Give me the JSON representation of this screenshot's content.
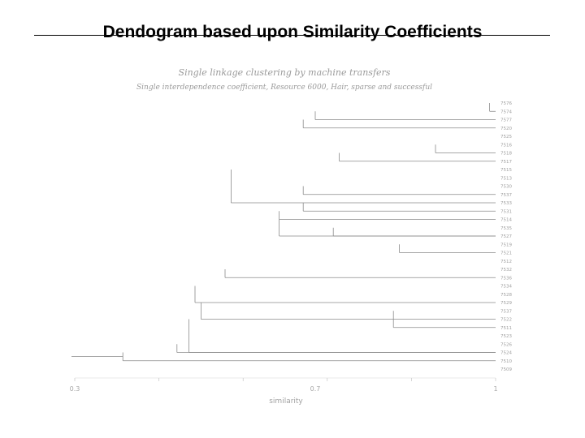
{
  "slide": {
    "title": "Dendogram based upon Similarity Coefficients"
  },
  "chart_data": {
    "type": "dendrogram",
    "title": "Single linkage clustering by machine transfers",
    "subtitle": "Single interdependence coefficient, Resource 6000, Hair, sparse and successful",
    "xlabel": "similarity",
    "x_tick_labels": [
      {
        "value": 0.3,
        "label": "0.3"
      },
      {
        "value": 0.7,
        "label": "0.7"
      },
      {
        "value": 1.0,
        "label": "1"
      }
    ],
    "xlim": [
      0.3,
      1.0
    ],
    "grid": false,
    "leaf_labels": [
      "7576",
      "7574",
      "7577",
      "7520",
      "7525",
      "7516",
      "7518",
      "7517",
      "7515",
      "7513",
      "7530",
      "7537",
      "7533",
      "7531",
      "7514",
      "7535",
      "7527",
      "7519",
      "7521",
      "7512",
      "7532",
      "7536",
      "7534",
      "7528",
      "7529",
      "7537",
      "7522",
      "7511",
      "7523",
      "7526",
      "7524",
      "7510",
      "7509"
    ],
    "merges": [
      {
        "rows": [
          0,
          1
        ],
        "similarity": 0.99
      },
      {
        "rows": [
          1,
          2
        ],
        "similarity": 0.7
      },
      {
        "rows": [
          2,
          3
        ],
        "similarity": 0.68
      },
      {
        "rows": [
          5,
          6
        ],
        "similarity": 0.9
      },
      {
        "rows": [
          6,
          7
        ],
        "similarity": 0.74
      },
      {
        "rows": [
          8,
          12
        ],
        "similarity": 0.56
      },
      {
        "rows": [
          10,
          11
        ],
        "similarity": 0.68
      },
      {
        "rows": [
          12,
          13
        ],
        "similarity": 0.68
      },
      {
        "rows": [
          13,
          14
        ],
        "similarity": 0.64
      },
      {
        "rows": [
          14,
          16
        ],
        "similarity": 0.64
      },
      {
        "rows": [
          15,
          16
        ],
        "similarity": 0.73
      },
      {
        "rows": [
          17,
          18
        ],
        "similarity": 0.84
      },
      {
        "rows": [
          20,
          21
        ],
        "similarity": 0.55
      },
      {
        "rows": [
          22,
          24
        ],
        "similarity": 0.5
      },
      {
        "rows": [
          24,
          26
        ],
        "similarity": 0.51
      },
      {
        "rows": [
          25,
          27
        ],
        "similarity": 0.83
      },
      {
        "rows": [
          26,
          30
        ],
        "similarity": 0.49
      },
      {
        "rows": [
          29,
          30
        ],
        "similarity": 0.47
      },
      {
        "rows": [
          30,
          31
        ],
        "similarity": 0.38
      }
    ]
  }
}
